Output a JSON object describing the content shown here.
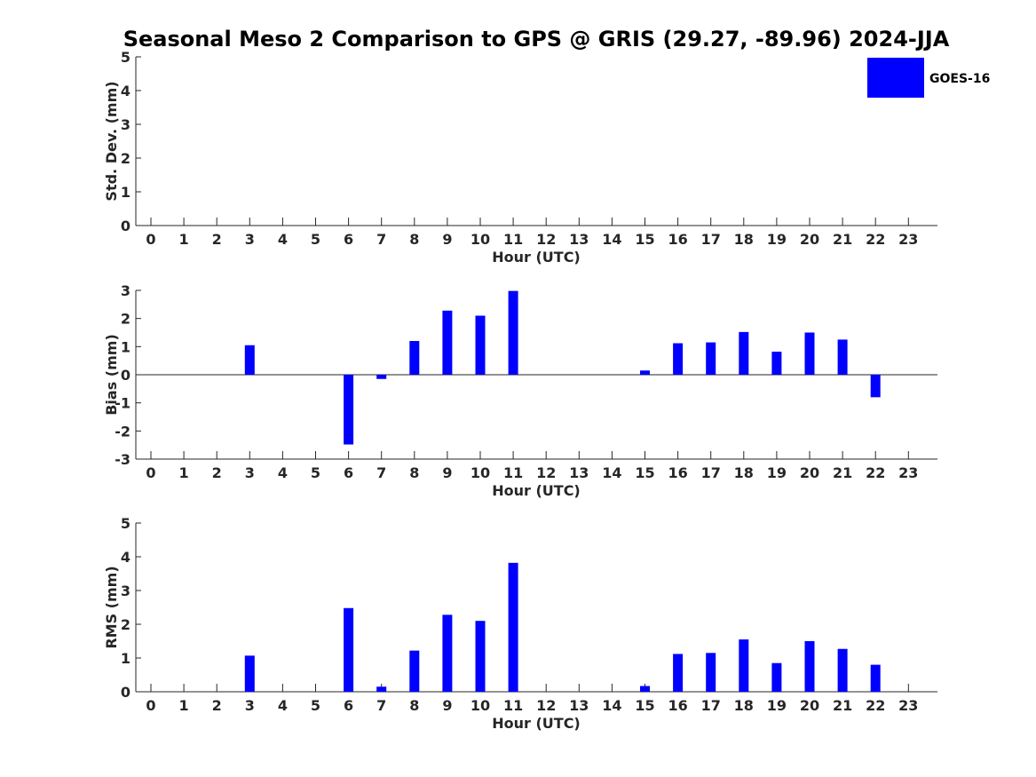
{
  "title": "Seasonal Meso 2 Comparison to GPS @ GRIS (29.27, -89.96) 2024-JJA",
  "legend": {
    "label": "GOES-16",
    "color": "#0000ff",
    "placement": "top-right"
  },
  "chart_data": [
    {
      "type": "bar",
      "xlabel": "Hour (UTC)",
      "ylabel": "Std. Dev. (mm)",
      "ylim": [
        0,
        5
      ],
      "yticks": [
        "0",
        "1",
        "2",
        "3",
        "4",
        "5"
      ],
      "categories": [
        "0",
        "1",
        "2",
        "3",
        "4",
        "5",
        "6",
        "7",
        "8",
        "9",
        "10",
        "11",
        "12",
        "13",
        "14",
        "15",
        "16",
        "17",
        "18",
        "19",
        "20",
        "21",
        "22",
        "23"
      ],
      "series": [
        {
          "name": "GOES-16",
          "color": "#0000ff",
          "values": [
            0,
            0,
            0,
            0,
            0,
            0,
            0,
            0,
            0,
            0,
            0,
            0,
            0,
            0,
            0,
            0,
            0,
            0,
            0,
            0,
            0,
            0,
            0,
            0
          ]
        }
      ],
      "grid": false
    },
    {
      "type": "bar",
      "xlabel": "Hour (UTC)",
      "ylabel": "Bias (mm)",
      "ylim": [
        -3,
        3
      ],
      "yticks": [
        "-3",
        "-2",
        "-1",
        "0",
        "1",
        "2",
        "3"
      ],
      "categories": [
        "0",
        "1",
        "2",
        "3",
        "4",
        "5",
        "6",
        "7",
        "8",
        "9",
        "10",
        "11",
        "12",
        "13",
        "14",
        "15",
        "16",
        "17",
        "18",
        "19",
        "20",
        "21",
        "22",
        "23"
      ],
      "series": [
        {
          "name": "GOES-16",
          "color": "#0000ff",
          "values": [
            0,
            0,
            0,
            1.05,
            0,
            0,
            -2.48,
            -0.15,
            1.2,
            2.28,
            2.1,
            2.98,
            0,
            0,
            0,
            0.15,
            1.12,
            1.15,
            1.52,
            0.82,
            1.5,
            1.25,
            -0.8,
            0
          ]
        }
      ],
      "grid": false
    },
    {
      "type": "bar",
      "xlabel": "Hour (UTC)",
      "ylabel": "RMS (mm)",
      "ylim": [
        0,
        5
      ],
      "yticks": [
        "0",
        "1",
        "2",
        "3",
        "4",
        "5"
      ],
      "categories": [
        "0",
        "1",
        "2",
        "3",
        "4",
        "5",
        "6",
        "7",
        "8",
        "9",
        "10",
        "11",
        "12",
        "13",
        "14",
        "15",
        "16",
        "17",
        "18",
        "19",
        "20",
        "21",
        "22",
        "23"
      ],
      "series": [
        {
          "name": "GOES-16",
          "color": "#0000ff",
          "values": [
            0,
            0,
            0,
            1.07,
            0,
            0,
            2.48,
            0.15,
            1.22,
            2.28,
            2.1,
            3.82,
            0,
            0,
            0,
            0.17,
            1.12,
            1.15,
            1.55,
            0.85,
            1.5,
            1.27,
            0.8,
            0
          ]
        }
      ],
      "grid": false
    }
  ]
}
